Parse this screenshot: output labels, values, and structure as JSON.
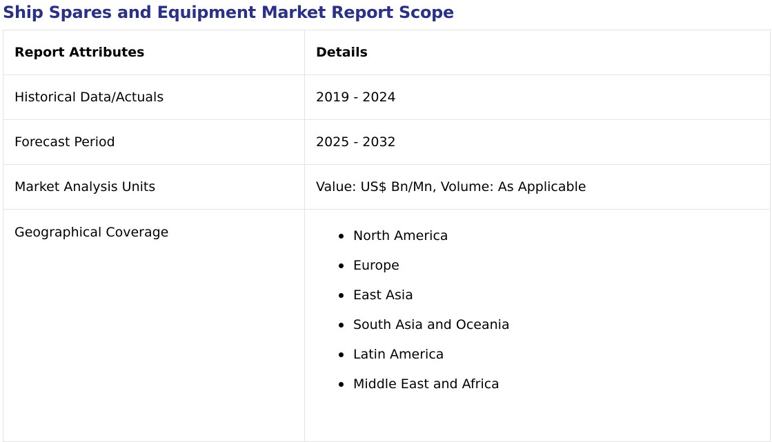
{
  "title": "Ship Spares and Equipment Market Report Scope",
  "table": {
    "headers": [
      "Report Attributes",
      "Details"
    ],
    "rows": [
      {
        "attribute": "Historical Data/Actuals",
        "detail": "2019 - 2024"
      },
      {
        "attribute": "Forecast Period",
        "detail": "2025 - 2032"
      },
      {
        "attribute": "Market Analysis Units",
        "detail": "Value: US$ Bn/Mn, Volume: As Applicable"
      }
    ],
    "geographical": {
      "attribute": "Geographical Coverage",
      "regions": [
        "North America",
        "Europe",
        "East Asia",
        "South Asia and Oceania",
        "Latin America",
        "Middle East and Africa"
      ]
    }
  },
  "colors": {
    "title": "#2c3182",
    "border": "#e3e3e3"
  }
}
